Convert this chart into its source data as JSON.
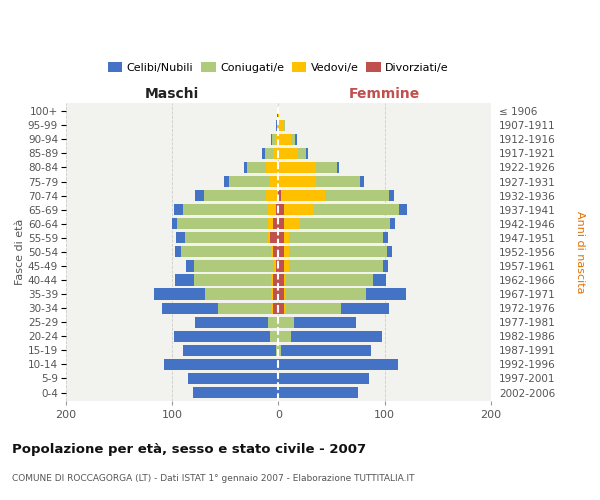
{
  "age_groups": [
    "0-4",
    "5-9",
    "10-14",
    "15-19",
    "20-24",
    "25-29",
    "30-34",
    "35-39",
    "40-44",
    "45-49",
    "50-54",
    "55-59",
    "60-64",
    "65-69",
    "70-74",
    "75-79",
    "80-84",
    "85-89",
    "90-94",
    "95-99",
    "100+"
  ],
  "birth_years": [
    "2002-2006",
    "1997-2001",
    "1992-1996",
    "1987-1991",
    "1982-1986",
    "1977-1981",
    "1972-1976",
    "1967-1971",
    "1962-1966",
    "1957-1961",
    "1952-1956",
    "1947-1951",
    "1942-1946",
    "1937-1941",
    "1932-1936",
    "1927-1931",
    "1922-1926",
    "1917-1921",
    "1912-1916",
    "1907-1911",
    "≤ 1906"
  ],
  "maschi_celibi": [
    80,
    85,
    108,
    88,
    90,
    68,
    52,
    48,
    18,
    8,
    5,
    8,
    5,
    8,
    8,
    5,
    2,
    2,
    1,
    1,
    1
  ],
  "maschi_coniugati": [
    0,
    0,
    0,
    2,
    8,
    10,
    50,
    62,
    72,
    75,
    85,
    78,
    85,
    80,
    58,
    38,
    18,
    8,
    3,
    0,
    0
  ],
  "maschi_vedovi": [
    0,
    0,
    0,
    0,
    0,
    0,
    2,
    2,
    2,
    2,
    2,
    2,
    5,
    8,
    12,
    8,
    12,
    5,
    3,
    1,
    0
  ],
  "maschi_divorziati": [
    0,
    0,
    0,
    0,
    0,
    0,
    5,
    5,
    5,
    2,
    5,
    8,
    5,
    2,
    0,
    0,
    0,
    0,
    0,
    0,
    0
  ],
  "femmine_nubili": [
    75,
    85,
    112,
    85,
    85,
    58,
    45,
    38,
    12,
    5,
    5,
    5,
    5,
    8,
    5,
    3,
    2,
    2,
    1,
    0,
    0
  ],
  "femmine_coniugate": [
    0,
    0,
    0,
    2,
    12,
    15,
    52,
    75,
    82,
    88,
    92,
    88,
    85,
    80,
    60,
    42,
    20,
    8,
    4,
    1,
    0
  ],
  "femmine_vedove": [
    0,
    0,
    0,
    0,
    0,
    0,
    2,
    2,
    2,
    5,
    5,
    5,
    15,
    28,
    42,
    35,
    35,
    18,
    12,
    5,
    1
  ],
  "femmine_divorziate": [
    0,
    0,
    0,
    0,
    0,
    0,
    5,
    5,
    5,
    5,
    5,
    5,
    5,
    5,
    2,
    0,
    0,
    0,
    0,
    0,
    0
  ],
  "color_celibi": "#4472C4",
  "color_coniugati": "#AECA7A",
  "color_vedovi": "#FFC000",
  "color_divorziati": "#C0504D",
  "bg_color": "#FFFFFF",
  "panel_bg": "#F2F2EE",
  "grid_color": "#CCCCCC",
  "xlim": 200,
  "title": "Popolazione per età, sesso e stato civile - 2007",
  "subtitle": "COMUNE DI ROCCAGORGA (LT) - Dati ISTAT 1° gennaio 2007 - Elaborazione TUTTITALIA.IT",
  "ylabel_left": "Fasce di età",
  "ylabel_right": "Anni di nascita",
  "col_maschi": "Maschi",
  "col_femmine": "Femmine",
  "legend_labels": [
    "Celibi/Nubili",
    "Coniugati/e",
    "Vedovi/e",
    "Divorziati/e"
  ]
}
